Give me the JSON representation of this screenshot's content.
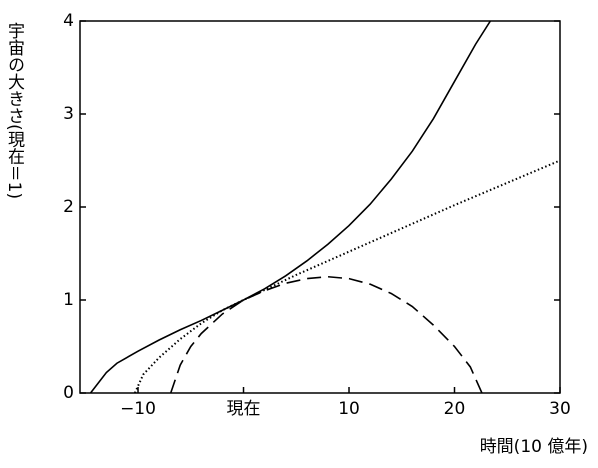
{
  "chart_data": {
    "type": "line",
    "y_label": "宇宙の大きさ(現在＝1)",
    "x_label": "時間(10 億年)",
    "xlim": [
      -15.5,
      30
    ],
    "ylim": [
      0,
      4
    ],
    "xticks": [
      {
        "value": -10,
        "label": "−10"
      },
      {
        "value": 0,
        "label": "現在"
      },
      10,
      20,
      30
    ],
    "yticks": [
      0,
      1,
      2,
      3,
      4
    ],
    "series": [
      {
        "color": "#000000",
        "dash": "solid",
        "x": [
          -14.5,
          -13,
          -12,
          -10,
          -8,
          -6,
          -4,
          -2,
          0,
          2,
          4,
          6,
          8,
          10,
          12,
          14,
          16,
          18,
          20,
          22,
          23.4
        ],
        "values": [
          0,
          0.22,
          0.32,
          0.45,
          0.57,
          0.68,
          0.78,
          0.89,
          1,
          1.12,
          1.26,
          1.42,
          1.6,
          1.8,
          2.03,
          2.3,
          2.6,
          2.95,
          3.35,
          3.75,
          4
        ]
      },
      {
        "color": "#000000",
        "dash": "dotted",
        "x": [
          -10.3,
          -9.5,
          -8,
          -6,
          -4,
          -2,
          0,
          5,
          10,
          15,
          20,
          25,
          30
        ],
        "values": [
          0,
          0.2,
          0.38,
          0.58,
          0.75,
          0.89,
          1,
          1.27,
          1.52,
          1.77,
          2.02,
          2.26,
          2.5
        ]
      },
      {
        "color": "#000000",
        "dash": "dashed",
        "x": [
          -6.9,
          -6,
          -5,
          -4,
          -2,
          0,
          2,
          4,
          6,
          8,
          10,
          12,
          14,
          16,
          18,
          20,
          21.5,
          22.6
        ],
        "values": [
          0,
          0.3,
          0.5,
          0.64,
          0.85,
          1,
          1.1,
          1.18,
          1.23,
          1.25,
          1.23,
          1.17,
          1.07,
          0.93,
          0.73,
          0.5,
          0.28,
          0
        ]
      }
    ]
  }
}
